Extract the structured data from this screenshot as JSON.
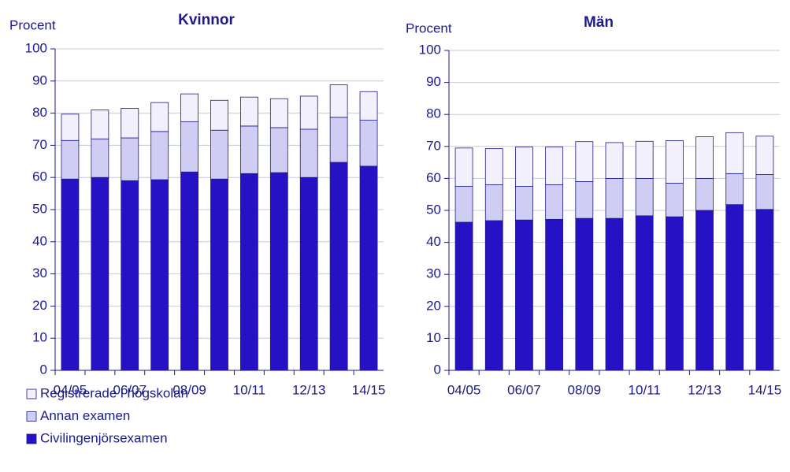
{
  "chart_data": [
    {
      "type": "stacked_bar",
      "title": "Kvinnor",
      "y_label": "Procent",
      "categories": [
        "04/05",
        null,
        "06/07",
        null,
        "08/09",
        null,
        "10/11",
        null,
        "12/13",
        null,
        "14/15"
      ],
      "series": [
        {
          "name": "Civilingenjörsexamen",
          "color": "#2612c4",
          "values": [
            59.5,
            60,
            59,
            59.3,
            61.7,
            59.5,
            61.2,
            61.5,
            60,
            64.7,
            63.5
          ]
        },
        {
          "name": "Annan examen",
          "color": "#cfcdf3",
          "values": [
            12,
            12,
            13.3,
            15,
            15.6,
            15.2,
            14.8,
            14,
            15,
            14,
            14.3
          ]
        },
        {
          "name": "Registrerade i högskolan",
          "color": "#f1f0fc",
          "values": [
            8.2,
            9,
            9.2,
            9,
            8.7,
            9.3,
            9,
            9,
            10.3,
            10.1,
            8.9
          ]
        }
      ],
      "ylim": [
        0,
        100
      ],
      "yticks": [
        0,
        10,
        20,
        30,
        40,
        50,
        60,
        70,
        80,
        90,
        100
      ],
      "grid": true
    },
    {
      "type": "stacked_bar",
      "title": "Män",
      "y_label": "Procent",
      "categories": [
        "04/05",
        null,
        "06/07",
        null,
        "08/09",
        null,
        "10/11",
        null,
        "12/13",
        null,
        "14/15"
      ],
      "series": [
        {
          "color": "#2612c4",
          "values": [
            46.3,
            46.8,
            47,
            47.2,
            47.5,
            47.5,
            48.3,
            48,
            50,
            51.8,
            50.3
          ]
        },
        {
          "color": "#cfcdf3",
          "values": [
            11.2,
            11.2,
            10.5,
            10.8,
            11.5,
            12.5,
            11.7,
            10.5,
            10,
            9.7,
            10.9
          ]
        },
        {
          "color": "#f1f0fc",
          "values": [
            12,
            11.3,
            12.3,
            11.8,
            12.5,
            11.2,
            11.6,
            13.3,
            13,
            12.8,
            12
          ]
        }
      ],
      "ylim": [
        0,
        100
      ],
      "yticks": [
        0,
        10,
        20,
        30,
        40,
        50,
        60,
        70,
        80,
        90,
        100
      ],
      "grid": true
    }
  ]
}
